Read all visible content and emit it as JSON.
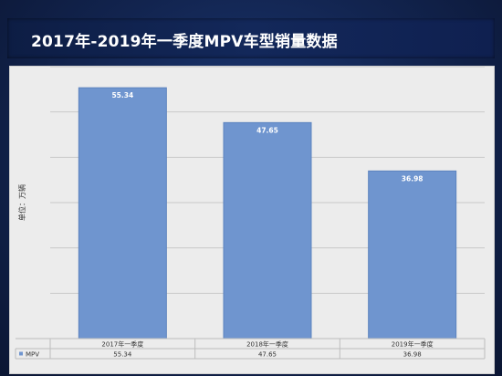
{
  "page": {
    "title": "2017年-2019年一季度MPV车型销量数据"
  },
  "chart_data": {
    "type": "bar",
    "title": "",
    "xlabel": "",
    "ylabel": "单位：万辆",
    "ylim": [
      0,
      60
    ],
    "grid": true,
    "categories": [
      "2017年一季度",
      "2018年一季度",
      "2019年一季度"
    ],
    "series": [
      {
        "name": "MPV",
        "values": [
          55.34,
          47.65,
          36.98
        ],
        "value_labels": [
          "55.34",
          "47.65",
          "36.98"
        ]
      }
    ],
    "legend_position": "bottom-left-in-table",
    "colors": {
      "bar": "#6f95cf",
      "bar_edge": "#5c83bf",
      "label": "#ffffff",
      "grid": "#c9c9c9"
    }
  }
}
